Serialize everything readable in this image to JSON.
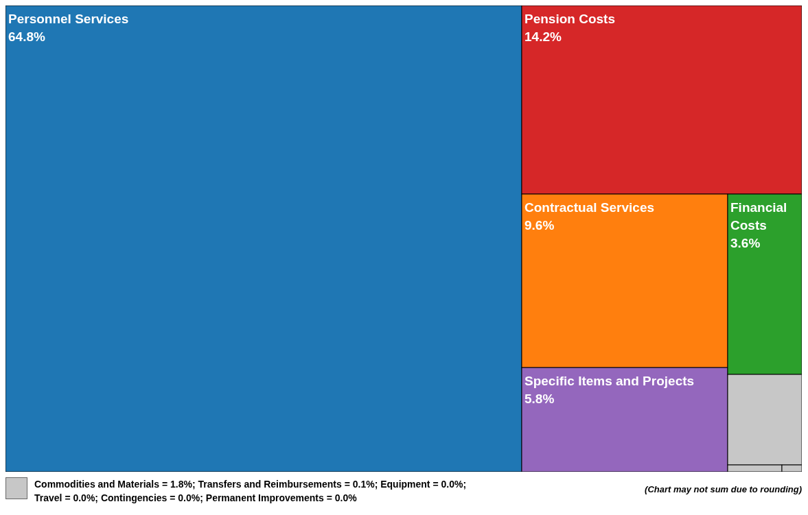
{
  "chart_data": {
    "type": "other",
    "categories": [
      "Personnel Services",
      "Pension Costs",
      "Contractual Services",
      "Specific Items and Projects",
      "Financial Costs",
      "Commodities and Materials",
      "Transfers and Reimbursements",
      "Equipment",
      "Travel",
      "Contingencies",
      "Permanent Improvements"
    ],
    "values": [
      64.8,
      14.2,
      9.6,
      5.8,
      3.6,
      1.8,
      0.1,
      0.0,
      0.0,
      0.0,
      0.0
    ],
    "value_labels": [
      "64.8%",
      "14.2%",
      "9.6%",
      "5.8%",
      "3.6%",
      "= 1.8%;",
      "= 0.1%;",
      "= 0.0%;",
      "= 0.0%;",
      "= 0.0%;",
      "= 0.0%"
    ],
    "colors": [
      "#1f77b4",
      "#d62728",
      "#ff7f0e",
      "#9467bd",
      "#2ca02c",
      "#c7c7c7",
      "#c7c7c7",
      "#c7c7c7",
      "#c7c7c7",
      "#c7c7c7",
      "#c7c7c7"
    ],
    "annotations": [
      "(Chart may not sum due to rounding)"
    ]
  }
}
